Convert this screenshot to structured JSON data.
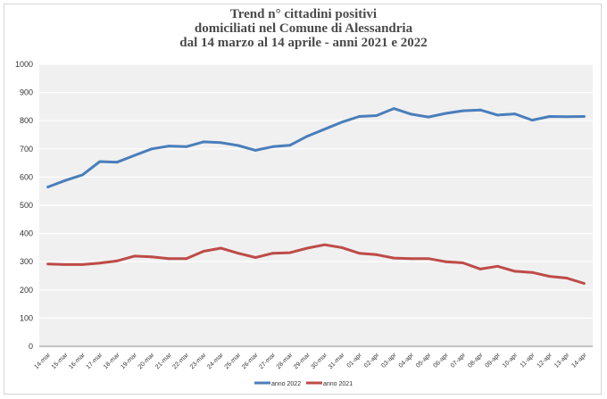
{
  "chart_data": {
    "type": "line",
    "title_lines": [
      "Trend n° cittadini positivi",
      "domiciliati nel Comune di Alessandria",
      "dal 14 marzo al 14 aprile - anni 2021 e 2022"
    ],
    "categories": [
      "14-mar",
      "15-mar",
      "16-mar",
      "17-mar",
      "18-mar",
      "19-mar",
      "20-mar",
      "21-mar",
      "22-mar",
      "23-mar",
      "24-mar",
      "25-mar",
      "26-mar",
      "27-mar",
      "28-mar",
      "29-mar",
      "30-mar",
      "31-mar",
      "01-apr",
      "02-apr",
      "03-apr",
      "04-apr",
      "05-apr",
      "06-apr",
      "07-apr",
      "08-apr",
      "09-apr",
      "10-apr",
      "11-apr",
      "12-apr",
      "13-apr",
      "14-apr"
    ],
    "ylim": [
      0,
      1000
    ],
    "yticks": [
      "0",
      "100",
      "200",
      "300",
      "400",
      "500",
      "600",
      "700",
      "800",
      "900",
      "1000"
    ],
    "grid": true,
    "legend": "bottom",
    "series": [
      {
        "name": "anno 2022",
        "color": "#4a7ebb",
        "values": [
          565,
          588,
          608,
          655,
          653,
          677,
          700,
          710,
          708,
          725,
          722,
          712,
          695,
          708,
          713,
          745,
          770,
          795,
          815,
          818,
          843,
          823,
          813,
          826,
          835,
          838,
          820,
          824,
          802,
          815,
          814,
          815
        ]
      },
      {
        "name": "anno 2021",
        "color": "#be4b48",
        "values": [
          292,
          290,
          290,
          295,
          303,
          320,
          317,
          311,
          311,
          337,
          348,
          330,
          315,
          330,
          332,
          348,
          360,
          350,
          330,
          325,
          313,
          311,
          311,
          300,
          296,
          274,
          284,
          266,
          262,
          248,
          242,
          223
        ]
      }
    ]
  }
}
